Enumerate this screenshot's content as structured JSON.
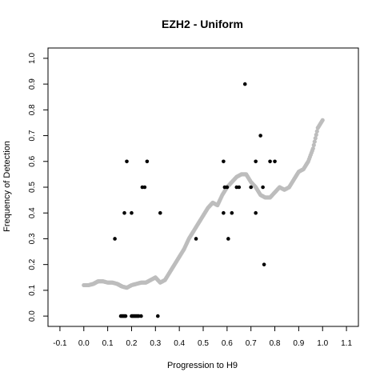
{
  "chart_data": {
    "type": "scatter",
    "title": "EZH2 - Uniform",
    "xlabel": "Progression to H9",
    "ylabel": "Frequency of Detection",
    "xlim": [
      -0.15,
      1.15
    ],
    "ylim": [
      -0.04,
      1.04
    ],
    "xticks": [
      -0.1,
      0.0,
      0.1,
      0.2,
      0.3,
      0.4,
      0.5,
      0.6,
      0.7,
      0.8,
      0.9,
      1.0,
      1.1
    ],
    "xtick_labels": [
      "-0.1",
      "0.0",
      "0.1",
      "0.2",
      "0.3",
      "0.4",
      "0.5",
      "0.6",
      "0.7",
      "0.8",
      "0.9",
      "1.0",
      "1.1"
    ],
    "yticks": [
      0.0,
      0.1,
      0.2,
      0.3,
      0.4,
      0.5,
      0.6,
      0.7,
      0.8,
      0.9,
      1.0
    ],
    "ytick_labels": [
      "0.0",
      "0.1",
      "0.2",
      "0.3",
      "0.4",
      "0.5",
      "0.6",
      "0.7",
      "0.8",
      "0.9",
      "1.0"
    ],
    "grid": false,
    "series": [
      {
        "color": "#000000",
        "x": [
          0.13,
          0.155,
          0.16,
          0.165,
          0.17,
          0.17,
          0.175,
          0.18,
          0.2,
          0.2,
          0.205,
          0.21,
          0.215,
          0.22,
          0.225,
          0.23,
          0.24,
          0.245,
          0.255,
          0.265,
          0.31,
          0.32,
          0.47,
          0.585,
          0.585,
          0.59,
          0.6,
          0.605,
          0.62,
          0.64,
          0.65,
          0.675,
          0.7,
          0.72,
          0.72,
          0.74,
          0.75,
          0.755,
          0.78,
          0.8
        ],
        "y": [
          0.3,
          0.0,
          0.0,
          0.0,
          0.4,
          0.0,
          0.0,
          0.6,
          0.4,
          0.0,
          0.0,
          0.0,
          0.0,
          0.0,
          0.0,
          0.0,
          0.0,
          0.5,
          0.5,
          0.6,
          0.0,
          0.4,
          0.3,
          0.6,
          0.4,
          0.5,
          0.5,
          0.3,
          0.4,
          0.5,
          0.5,
          0.9,
          0.5,
          0.6,
          0.4,
          0.7,
          0.5,
          0.2,
          0.6,
          0.6
        ]
      },
      {
        "color": "#bdbdbd",
        "x": [
          0.0,
          0.02,
          0.04,
          0.05,
          0.06,
          0.08,
          0.1,
          0.12,
          0.14,
          0.15,
          0.16,
          0.18,
          0.2,
          0.22,
          0.24,
          0.26,
          0.28,
          0.3,
          0.32,
          0.34,
          0.36,
          0.38,
          0.4,
          0.42,
          0.44,
          0.46,
          0.48,
          0.5,
          0.52,
          0.54,
          0.56,
          0.58,
          0.6,
          0.62,
          0.64,
          0.66,
          0.68,
          0.7,
          0.72,
          0.74,
          0.76,
          0.78,
          0.8,
          0.82,
          0.84,
          0.86,
          0.88,
          0.9,
          0.92,
          0.94,
          0.96,
          0.98,
          1.0
        ],
        "y": [
          0.12,
          0.12,
          0.125,
          0.13,
          0.135,
          0.135,
          0.13,
          0.13,
          0.125,
          0.12,
          0.115,
          0.11,
          0.12,
          0.125,
          0.13,
          0.13,
          0.14,
          0.15,
          0.13,
          0.14,
          0.17,
          0.2,
          0.23,
          0.26,
          0.3,
          0.33,
          0.36,
          0.39,
          0.42,
          0.44,
          0.43,
          0.47,
          0.5,
          0.52,
          0.54,
          0.55,
          0.55,
          0.52,
          0.5,
          0.47,
          0.46,
          0.46,
          0.48,
          0.5,
          0.49,
          0.5,
          0.53,
          0.56,
          0.57,
          0.6,
          0.65,
          0.73,
          0.76
        ]
      }
    ]
  }
}
